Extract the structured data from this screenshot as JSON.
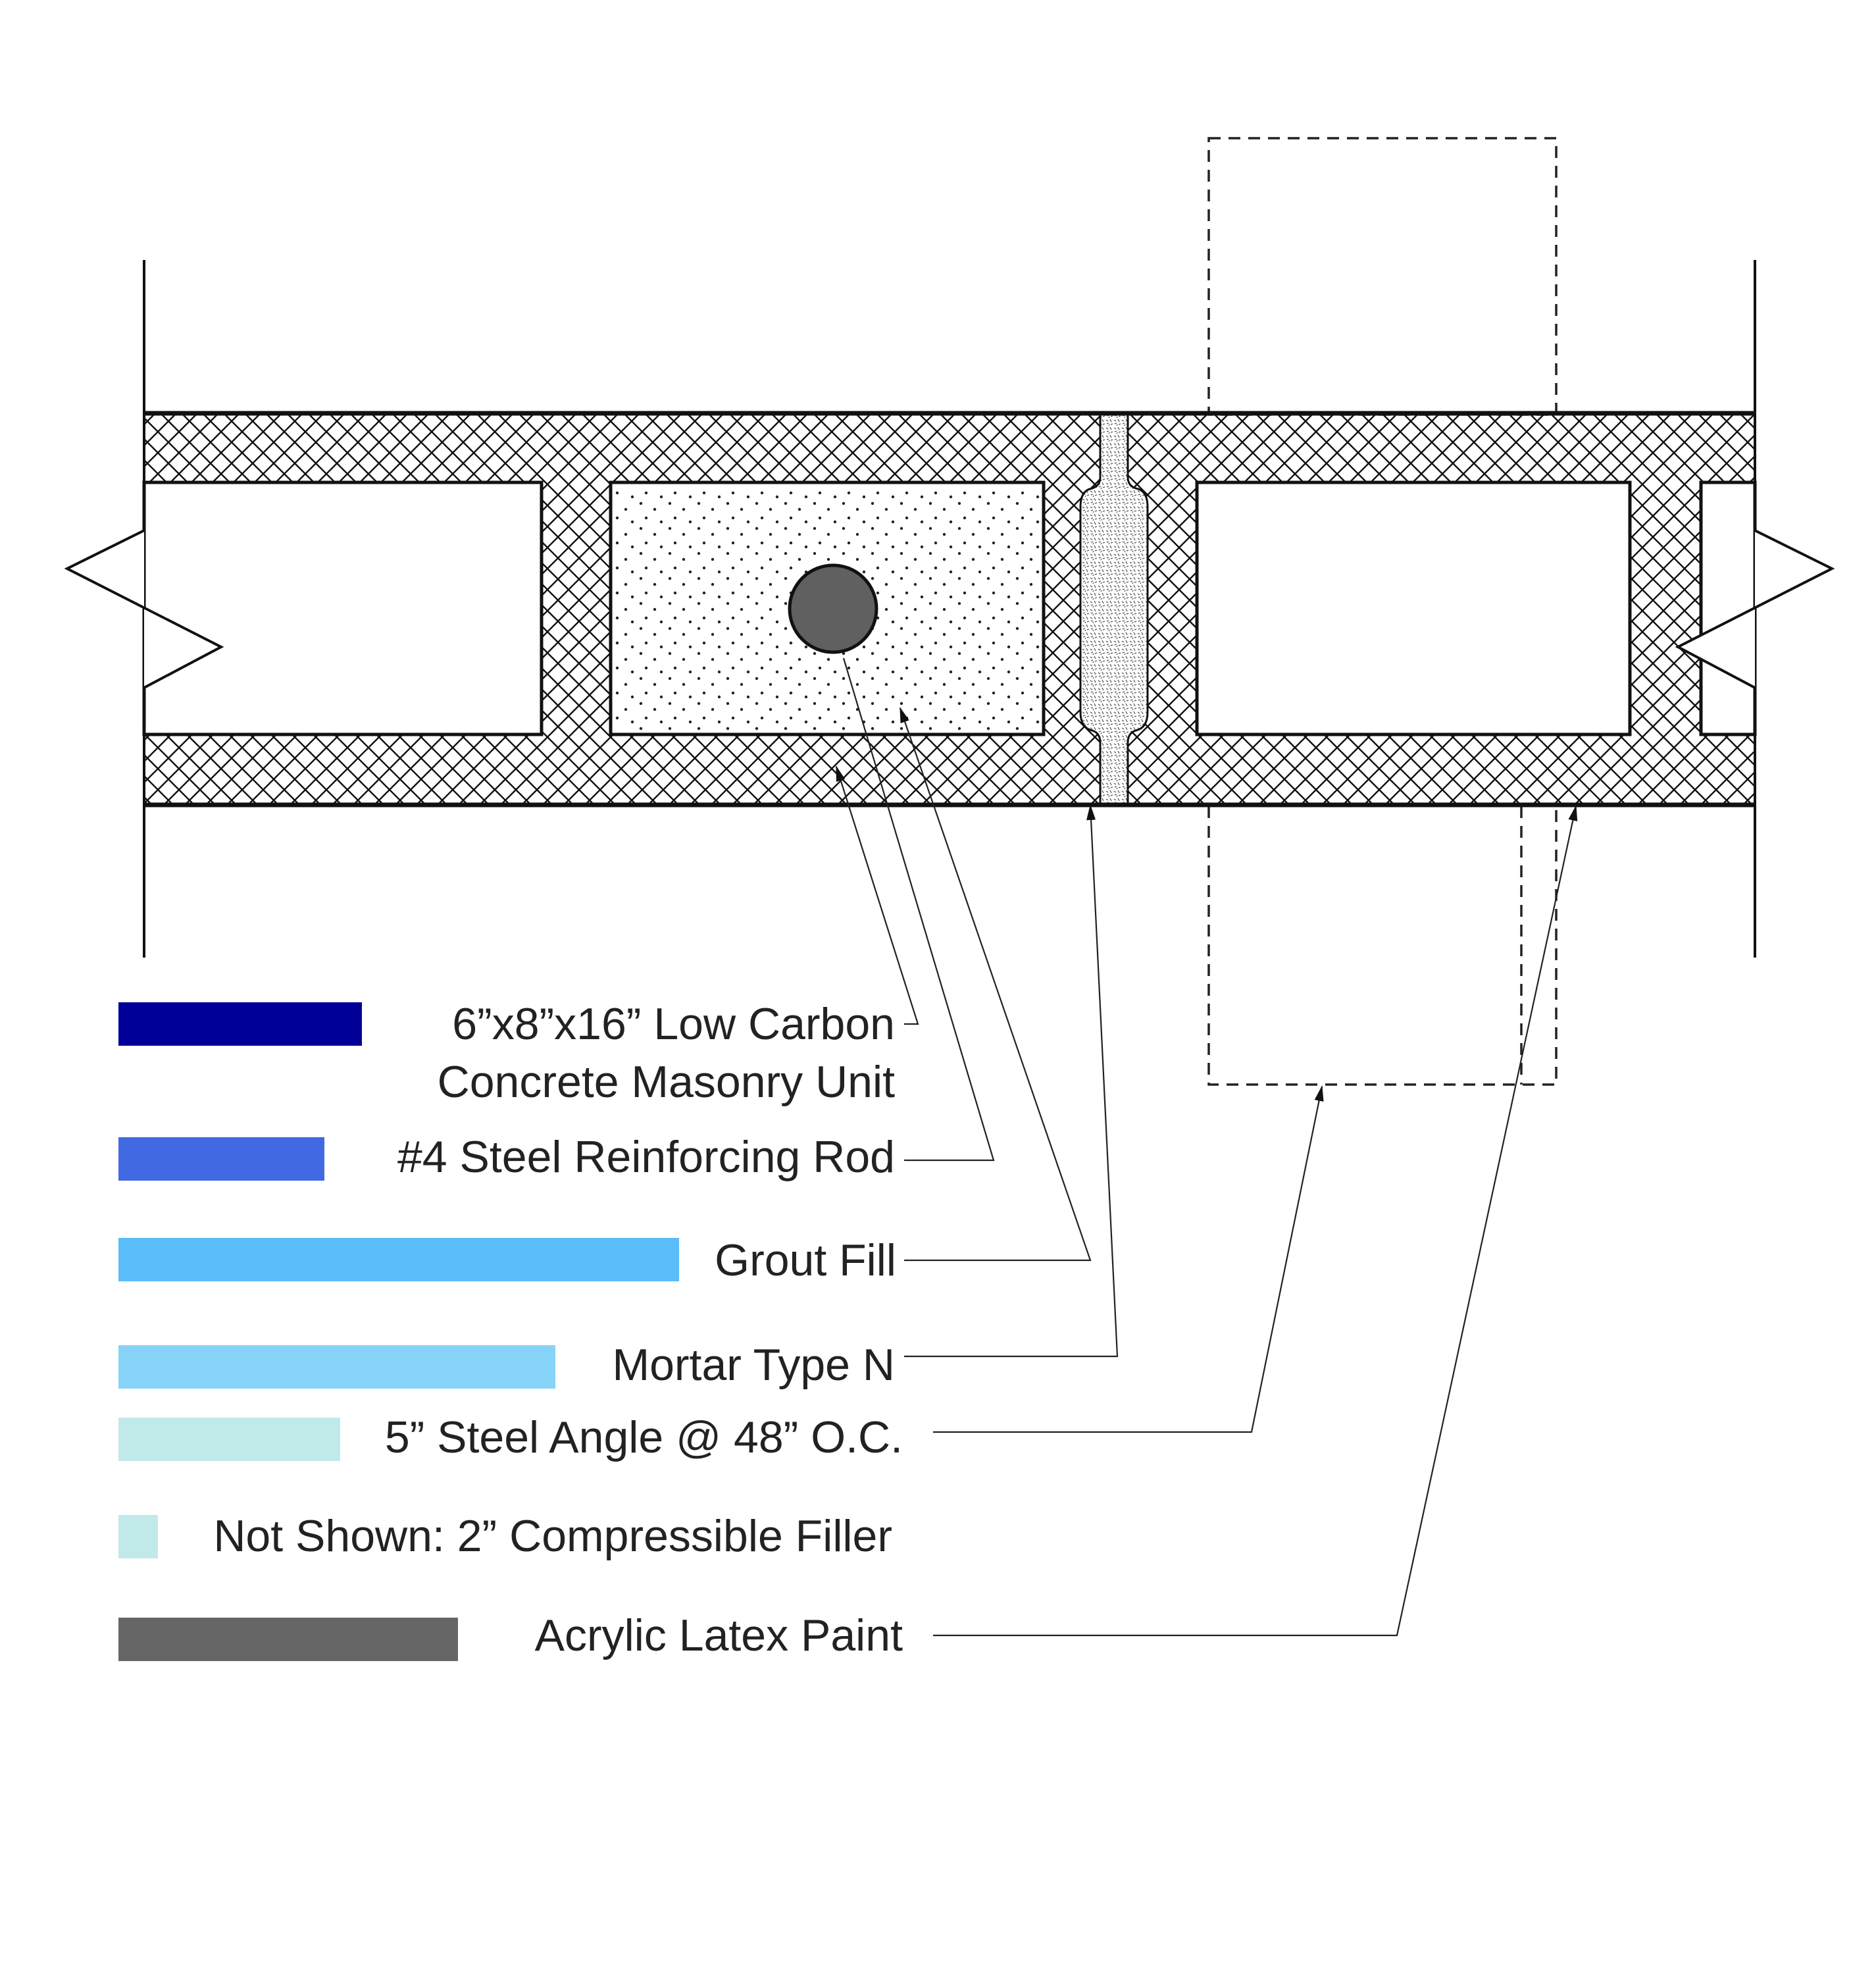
{
  "colors": {
    "cmu": "#000099",
    "steel_rod": "#4169e1",
    "grout": "#5bbcfa",
    "mortar": "#87d3f7",
    "steel_angle": "#c2e9ea",
    "filler": "#c2e9ea",
    "paint": "#666666",
    "hatch": "#111111",
    "rod_fill": "#606060"
  },
  "legend": [
    {
      "key": "cmu",
      "lines": [
        "6”x8”x16” Low Carbon",
        "Concrete Masonry Unit"
      ],
      "swatch_color": "#000099"
    },
    {
      "key": "steel_rod",
      "lines": [
        "#4 Steel Reinforcing Rod"
      ],
      "swatch_color": "#4169e1"
    },
    {
      "key": "grout",
      "lines": [
        "Grout Fill"
      ],
      "swatch_color": "#5bbcfa"
    },
    {
      "key": "mortar",
      "lines": [
        "Mortar Type N"
      ],
      "swatch_color": "#87d3f7"
    },
    {
      "key": "steel_angle",
      "lines": [
        "5” Steel Angle @ 48” O.C."
      ],
      "swatch_color": "#c2e9ea"
    },
    {
      "key": "filler",
      "lines": [
        "Not Shown: 2” Compressible Filler"
      ],
      "swatch_color": "#c2e9ea"
    },
    {
      "key": "paint",
      "lines": [
        "Acrylic Latex Paint"
      ],
      "swatch_color": "#666666"
    }
  ]
}
